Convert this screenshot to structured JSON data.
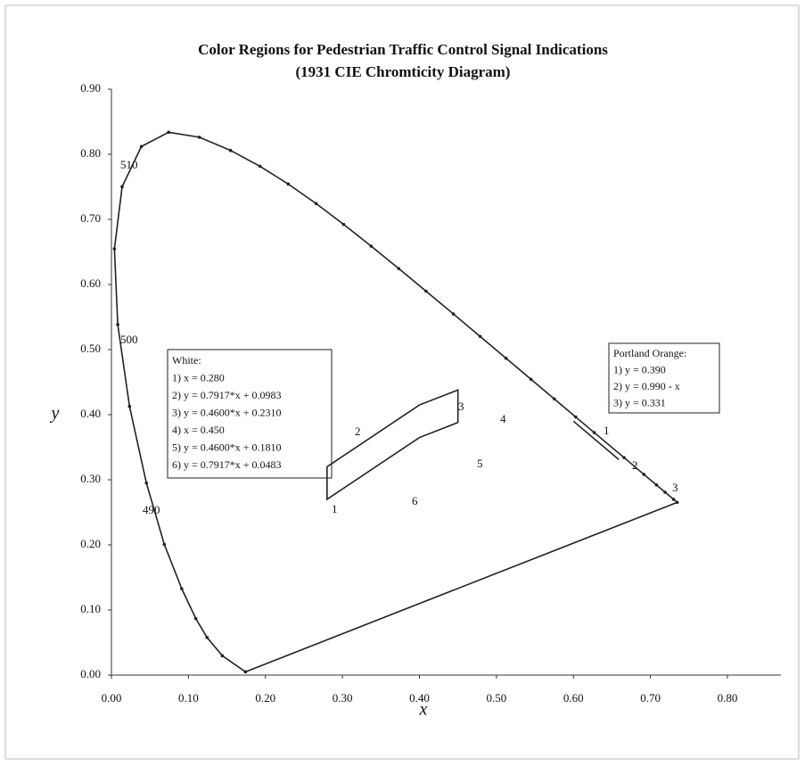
{
  "chart_data": {
    "type": "line",
    "title": "Color Regions for Pedestrian Traffic Control Signal Indications",
    "subtitle": "(1931 CIE Chromticity Diagram)",
    "x_label": "x",
    "y_label": "y",
    "xlim": [
      0,
      0.8
    ],
    "ylim": [
      0,
      0.9
    ],
    "xticks": [
      {
        "value": 0,
        "label": "0.00"
      },
      {
        "value": 0.1,
        "label": "0.10"
      },
      {
        "value": 0.2,
        "label": "0.20"
      },
      {
        "value": 0.3,
        "label": "0.30"
      },
      {
        "value": 0.4,
        "label": "0.40"
      },
      {
        "value": 0.5,
        "label": "0.50"
      },
      {
        "value": 0.6,
        "label": "0.60"
      },
      {
        "value": 0.7,
        "label": "0.70"
      },
      {
        "value": 0.8,
        "label": "0.80"
      }
    ],
    "yticks": [
      {
        "value": 0,
        "label": "0.00"
      },
      {
        "value": 0.1,
        "label": "0.10"
      },
      {
        "value": 0.2,
        "label": "0.20"
      },
      {
        "value": 0.3,
        "label": "0.30"
      },
      {
        "value": 0.4,
        "label": "0.40"
      },
      {
        "value": 0.5,
        "label": "0.50"
      },
      {
        "value": 0.6,
        "label": "0.60"
      },
      {
        "value": 0.7,
        "label": "0.70"
      },
      {
        "value": 0.8,
        "label": "0.80"
      },
      {
        "value": 0.9,
        "label": "0.90"
      }
    ],
    "series": [
      {
        "color": "#222",
        "markers": true,
        "x": [
          0.1741,
          0.144,
          0.1241,
          0.1096,
          0.0913,
          0.0687,
          0.0454,
          0.0235,
          0.0082,
          0.0039,
          0.0139,
          0.0389,
          0.0743,
          0.1142,
          0.1547,
          0.1929,
          0.2296,
          0.2658,
          0.3016,
          0.3373,
          0.3731,
          0.4087,
          0.4441,
          0.4788,
          0.5125,
          0.5448,
          0.5752,
          0.6029,
          0.627,
          0.6658,
          0.6915,
          0.7079,
          0.719,
          0.73,
          0.7347,
          0.1741
        ],
        "values": [
          0.005,
          0.0297,
          0.0578,
          0.0868,
          0.1327,
          0.2007,
          0.295,
          0.4127,
          0.5384,
          0.6548,
          0.7502,
          0.812,
          0.8338,
          0.8262,
          0.8059,
          0.7816,
          0.7543,
          0.7243,
          0.6923,
          0.6589,
          0.6245,
          0.5896,
          0.5547,
          0.5202,
          0.4866,
          0.4544,
          0.4242,
          0.3965,
          0.3725,
          0.334,
          0.3083,
          0.292,
          0.2809,
          0.27,
          0.2653,
          0.005
        ]
      },
      {
        "color": "#222",
        "markers": false,
        "x": [
          0.28,
          0.4001,
          0.45,
          0.45,
          0.4001,
          0.28,
          0.28
        ],
        "values": [
          0.32,
          0.415,
          0.438,
          0.388,
          0.365,
          0.27,
          0.32
        ]
      },
      {
        "color": "#222",
        "markers": false,
        "x": [
          0.6,
          0.659
        ],
        "values": [
          0.39,
          0.331
        ]
      }
    ],
    "wavelength_labels": [
      "510",
      "500",
      "490"
    ],
    "white_edge_labels": [
      "1",
      "2",
      "3",
      "4",
      "5",
      "6"
    ],
    "orange_edge_labels": [
      "1",
      "2",
      "3"
    ],
    "white_box": [
      "White:",
      "1) x = 0.280",
      "2) y = 0.7917*x + 0.0983",
      "3) y = 0.4600*x + 0.2310",
      "4) x = 0.450",
      "5) y = 0.4600*x + 0.1810",
      "6) y = 0.7917*x + 0.0483"
    ],
    "orange_box": [
      "Portland Orange:",
      "1) y = 0.390",
      "2) y = 0.990 - x",
      "3) y = 0.331"
    ]
  }
}
